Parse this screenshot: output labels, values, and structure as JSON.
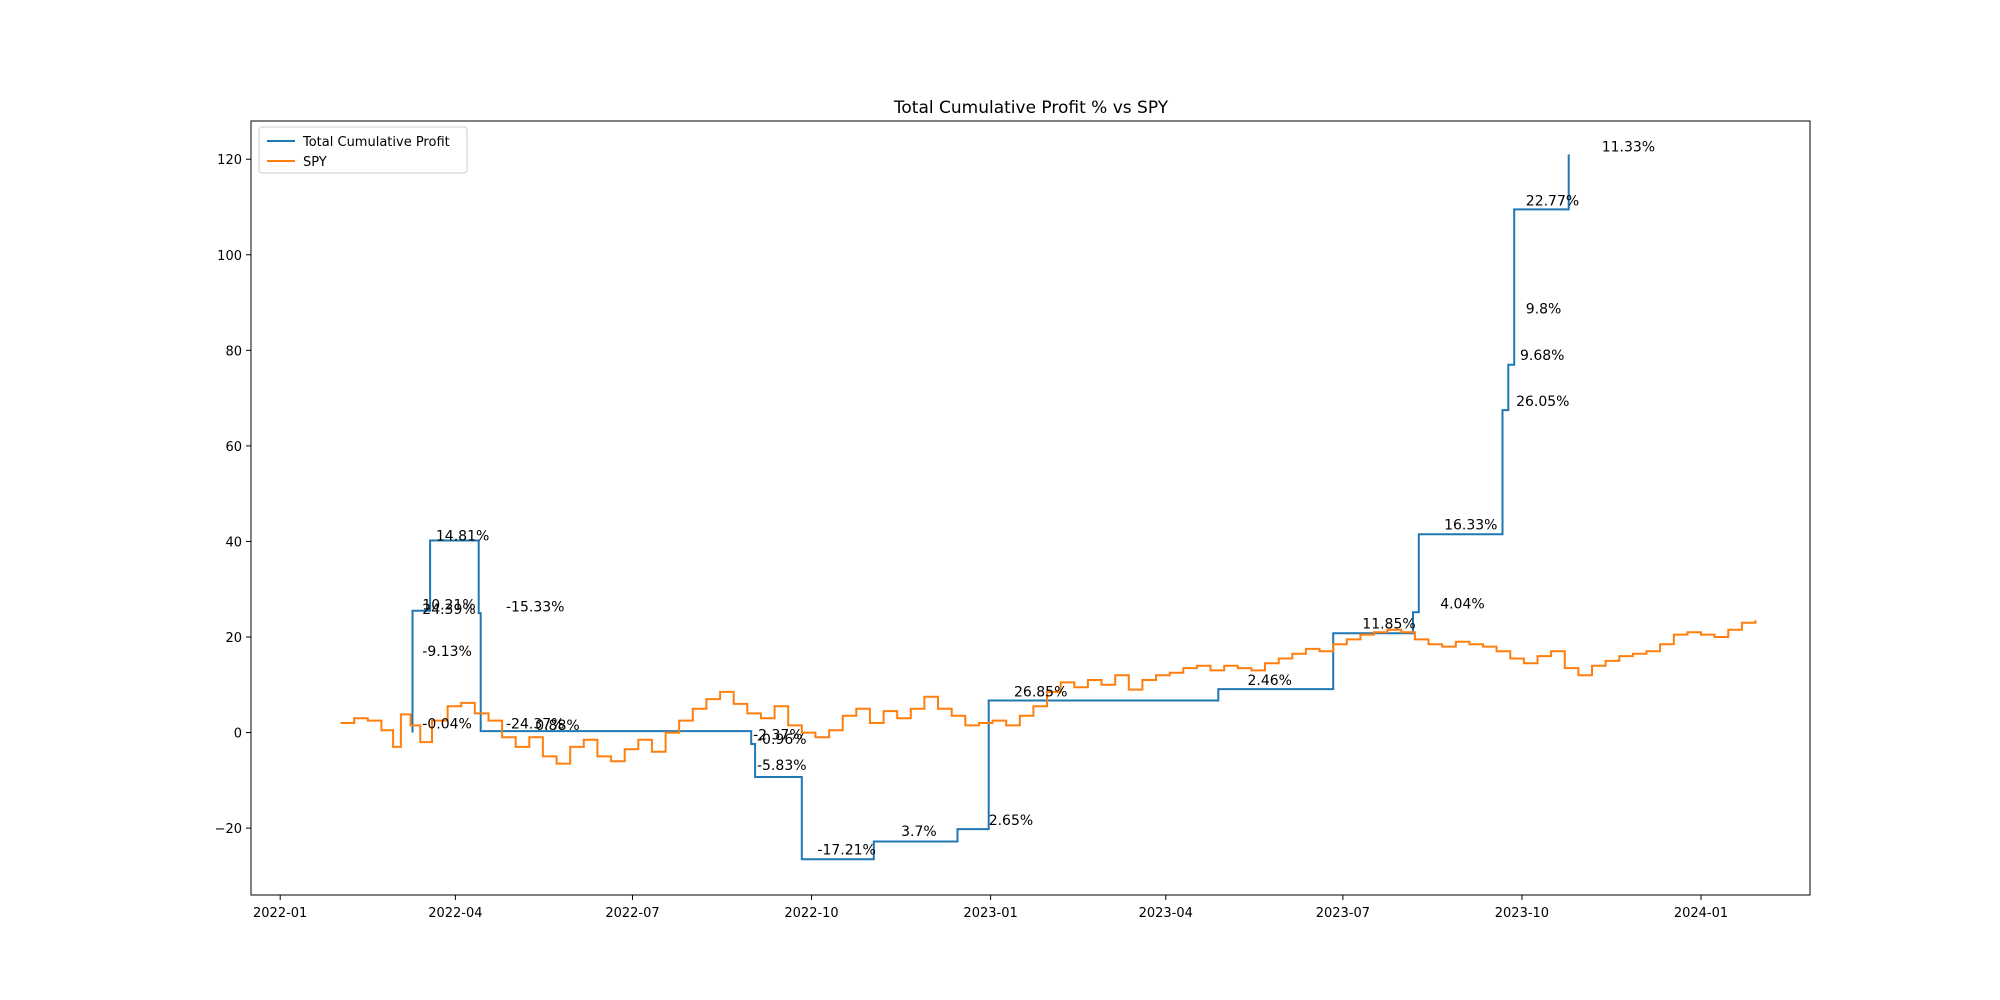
{
  "chart_data": {
    "type": "line",
    "title": "Total Cumulative Profit % vs SPY",
    "xlabel": "",
    "ylabel": "",
    "xlim": [
      "2021-12-17",
      "2024-02-26"
    ],
    "ylim": [
      -34,
      128
    ],
    "grid": false,
    "legend_position": "top-left",
    "x_ticks": [
      "2022-01",
      "2022-04",
      "2022-07",
      "2022-10",
      "2023-01",
      "2023-04",
      "2023-07",
      "2023-10",
      "2024-01"
    ],
    "y_ticks": [
      -20,
      0,
      20,
      40,
      60,
      80,
      100,
      120
    ],
    "y_tick_labels": [
      "−20",
      "0",
      "20",
      "40",
      "60",
      "80",
      "100",
      "120"
    ],
    "series": [
      {
        "name": "Total Cumulative Profit",
        "color": "#1f77b4",
        "step": "post",
        "points": [
          [
            "2022-03-10",
            0
          ],
          [
            "2022-03-10",
            25.5
          ],
          [
            "2022-03-19",
            25.5
          ],
          [
            "2022-03-19",
            40.2
          ],
          [
            "2022-04-13",
            40.2
          ],
          [
            "2022-04-13",
            25
          ],
          [
            "2022-04-14",
            25
          ],
          [
            "2022-04-14",
            0.3
          ],
          [
            "2022-08-31",
            0.3
          ],
          [
            "2022-08-31",
            -2.4
          ],
          [
            "2022-09-02",
            -2.4
          ],
          [
            "2022-09-02",
            -9.3
          ],
          [
            "2022-09-26",
            -9.3
          ],
          [
            "2022-09-26",
            -26.5
          ],
          [
            "2022-11-02",
            -26.5
          ],
          [
            "2022-11-02",
            -22.8
          ],
          [
            "2022-12-15",
            -22.8
          ],
          [
            "2022-12-15",
            -20.2
          ],
          [
            "2022-12-31",
            -20.2
          ],
          [
            "2022-12-31",
            6.7
          ],
          [
            "2023-04-28",
            6.7
          ],
          [
            "2023-04-28",
            9.1
          ],
          [
            "2023-06-26",
            9.1
          ],
          [
            "2023-06-26",
            20.8
          ],
          [
            "2023-08-06",
            20.8
          ],
          [
            "2023-08-06",
            25.2
          ],
          [
            "2023-08-09",
            25.2
          ],
          [
            "2023-08-09",
            41.5
          ],
          [
            "2023-09-21",
            41.5
          ],
          [
            "2023-09-21",
            67.5
          ],
          [
            "2023-09-24",
            67.5
          ],
          [
            "2023-09-24",
            77
          ],
          [
            "2023-09-27",
            77
          ],
          [
            "2023-09-27",
            109.5
          ],
          [
            "2023-10-25",
            109.5
          ],
          [
            "2023-10-25",
            121
          ]
        ]
      },
      {
        "name": "SPY",
        "color": "#ff7f0e",
        "step": "post",
        "points": [
          [
            "2022-02-01",
            2
          ],
          [
            "2022-02-08",
            3
          ],
          [
            "2022-02-15",
            2.5
          ],
          [
            "2022-02-22",
            0.5
          ],
          [
            "2022-02-28",
            -3
          ],
          [
            "2022-03-04",
            3.8
          ],
          [
            "2022-03-09",
            1.5
          ],
          [
            "2022-03-14",
            -2
          ],
          [
            "2022-03-20",
            2.5
          ],
          [
            "2022-03-28",
            5.5
          ],
          [
            "2022-04-04",
            6.2
          ],
          [
            "2022-04-11",
            4
          ],
          [
            "2022-04-18",
            2.5
          ],
          [
            "2022-04-25",
            -1
          ],
          [
            "2022-05-02",
            -3
          ],
          [
            "2022-05-09",
            -1
          ],
          [
            "2022-05-16",
            -5
          ],
          [
            "2022-05-23",
            -6.5
          ],
          [
            "2022-05-30",
            -3
          ],
          [
            "2022-06-06",
            -1.5
          ],
          [
            "2022-06-13",
            -5
          ],
          [
            "2022-06-20",
            -6
          ],
          [
            "2022-06-27",
            -3.5
          ],
          [
            "2022-07-04",
            -1.5
          ],
          [
            "2022-07-11",
            -4
          ],
          [
            "2022-07-18",
            0
          ],
          [
            "2022-07-25",
            2.5
          ],
          [
            "2022-08-01",
            5
          ],
          [
            "2022-08-08",
            7
          ],
          [
            "2022-08-15",
            8.5
          ],
          [
            "2022-08-22",
            6
          ],
          [
            "2022-08-29",
            4
          ],
          [
            "2022-09-05",
            3
          ],
          [
            "2022-09-12",
            5.5
          ],
          [
            "2022-09-19",
            1.5
          ],
          [
            "2022-09-26",
            0
          ],
          [
            "2022-10-03",
            -1
          ],
          [
            "2022-10-10",
            0.5
          ],
          [
            "2022-10-17",
            3.5
          ],
          [
            "2022-10-24",
            5
          ],
          [
            "2022-10-31",
            2
          ],
          [
            "2022-11-07",
            4.5
          ],
          [
            "2022-11-14",
            3
          ],
          [
            "2022-11-21",
            5
          ],
          [
            "2022-11-28",
            7.5
          ],
          [
            "2022-12-05",
            5
          ],
          [
            "2022-12-12",
            3.5
          ],
          [
            "2022-12-19",
            1.5
          ],
          [
            "2022-12-26",
            2
          ],
          [
            "2023-01-02",
            2.5
          ],
          [
            "2023-01-09",
            1.5
          ],
          [
            "2023-01-16",
            3.5
          ],
          [
            "2023-01-23",
            5.5
          ],
          [
            "2023-01-30",
            8.5
          ],
          [
            "2023-02-06",
            10.5
          ],
          [
            "2023-02-13",
            9.5
          ],
          [
            "2023-02-20",
            11
          ],
          [
            "2023-02-27",
            10
          ],
          [
            "2023-03-06",
            12
          ],
          [
            "2023-03-13",
            9
          ],
          [
            "2023-03-20",
            11
          ],
          [
            "2023-03-27",
            12
          ],
          [
            "2023-04-03",
            12.5
          ],
          [
            "2023-04-10",
            13.5
          ],
          [
            "2023-04-17",
            14
          ],
          [
            "2023-04-24",
            13
          ],
          [
            "2023-05-01",
            14
          ],
          [
            "2023-05-08",
            13.5
          ],
          [
            "2023-05-15",
            13
          ],
          [
            "2023-05-22",
            14.5
          ],
          [
            "2023-05-29",
            15.5
          ],
          [
            "2023-06-05",
            16.5
          ],
          [
            "2023-06-12",
            17.5
          ],
          [
            "2023-06-19",
            17
          ],
          [
            "2023-06-26",
            18.5
          ],
          [
            "2023-07-03",
            19.5
          ],
          [
            "2023-07-10",
            20.5
          ],
          [
            "2023-07-17",
            21
          ],
          [
            "2023-07-24",
            21.5
          ],
          [
            "2023-07-31",
            21
          ],
          [
            "2023-08-07",
            19.5
          ],
          [
            "2023-08-14",
            18.5
          ],
          [
            "2023-08-21",
            18
          ],
          [
            "2023-08-28",
            19
          ],
          [
            "2023-09-04",
            18.5
          ],
          [
            "2023-09-11",
            18
          ],
          [
            "2023-09-18",
            17
          ],
          [
            "2023-09-25",
            15.5
          ],
          [
            "2023-10-02",
            14.5
          ],
          [
            "2023-10-09",
            16
          ],
          [
            "2023-10-16",
            17
          ],
          [
            "2023-10-23",
            13.5
          ],
          [
            "2023-10-30",
            12
          ],
          [
            "2023-11-06",
            14
          ],
          [
            "2023-11-13",
            15
          ],
          [
            "2023-11-20",
            16
          ],
          [
            "2023-11-27",
            16.5
          ],
          [
            "2023-12-04",
            17
          ],
          [
            "2023-12-11",
            18.5
          ],
          [
            "2023-12-18",
            20.5
          ],
          [
            "2023-12-25",
            21
          ],
          [
            "2024-01-01",
            20.5
          ],
          [
            "2024-01-08",
            20
          ],
          [
            "2024-01-15",
            21.5
          ],
          [
            "2024-01-22",
            23
          ],
          [
            "2024-01-29",
            23.5
          ]
        ]
      }
    ],
    "annotations": [
      {
        "text": "14.81%",
        "x": "2022-03-22",
        "y": 40.2
      },
      {
        "text": "10.21%",
        "x": "2022-03-15",
        "y": 25.8
      },
      {
        "text": "24.39%",
        "x": "2022-03-15",
        "y": 24.8
      },
      {
        "text": "-15.33%",
        "x": "2022-04-27",
        "y": 25.3
      },
      {
        "text": "-9.13%",
        "x": "2022-03-15",
        "y": 16
      },
      {
        "text": "-0.04%",
        "x": "2022-03-15",
        "y": 0.8
      },
      {
        "text": "-24.37%",
        "x": "2022-04-27",
        "y": 0.8
      },
      {
        "text": "0.88%",
        "x": "2022-05-12",
        "y": 0.5
      },
      {
        "text": "-2.37%",
        "x": "2022-09-01",
        "y": -1.5
      },
      {
        "text": "-0.96%",
        "x": "2022-09-03",
        "y": -2.4
      },
      {
        "text": "-5.83%",
        "x": "2022-09-03",
        "y": -7.8
      },
      {
        "text": "-17.21%",
        "x": "2022-10-04",
        "y": -25.5
      },
      {
        "text": "3.7%",
        "x": "2022-11-16",
        "y": -21.7
      },
      {
        "text": "2.65%",
        "x": "2022-12-31",
        "y": -19.3
      },
      {
        "text": "26.85%",
        "x": "2023-01-13",
        "y": 7.5
      },
      {
        "text": "2.46%",
        "x": "2023-05-13",
        "y": 10
      },
      {
        "text": "11.85%",
        "x": "2023-07-11",
        "y": 21.8
      },
      {
        "text": "4.04%",
        "x": "2023-08-20",
        "y": 26
      },
      {
        "text": "16.33%",
        "x": "2023-08-22",
        "y": 42.5
      },
      {
        "text": "26.05%",
        "x": "2023-09-28",
        "y": 68.3
      },
      {
        "text": "9.68%",
        "x": "2023-09-30",
        "y": 78
      },
      {
        "text": "9.8%",
        "x": "2023-10-03",
        "y": 87.7
      },
      {
        "text": "22.77%",
        "x": "2023-10-03",
        "y": 110.3
      },
      {
        "text": "11.33%",
        "x": "2023-11-11",
        "y": 121.6
      }
    ]
  }
}
